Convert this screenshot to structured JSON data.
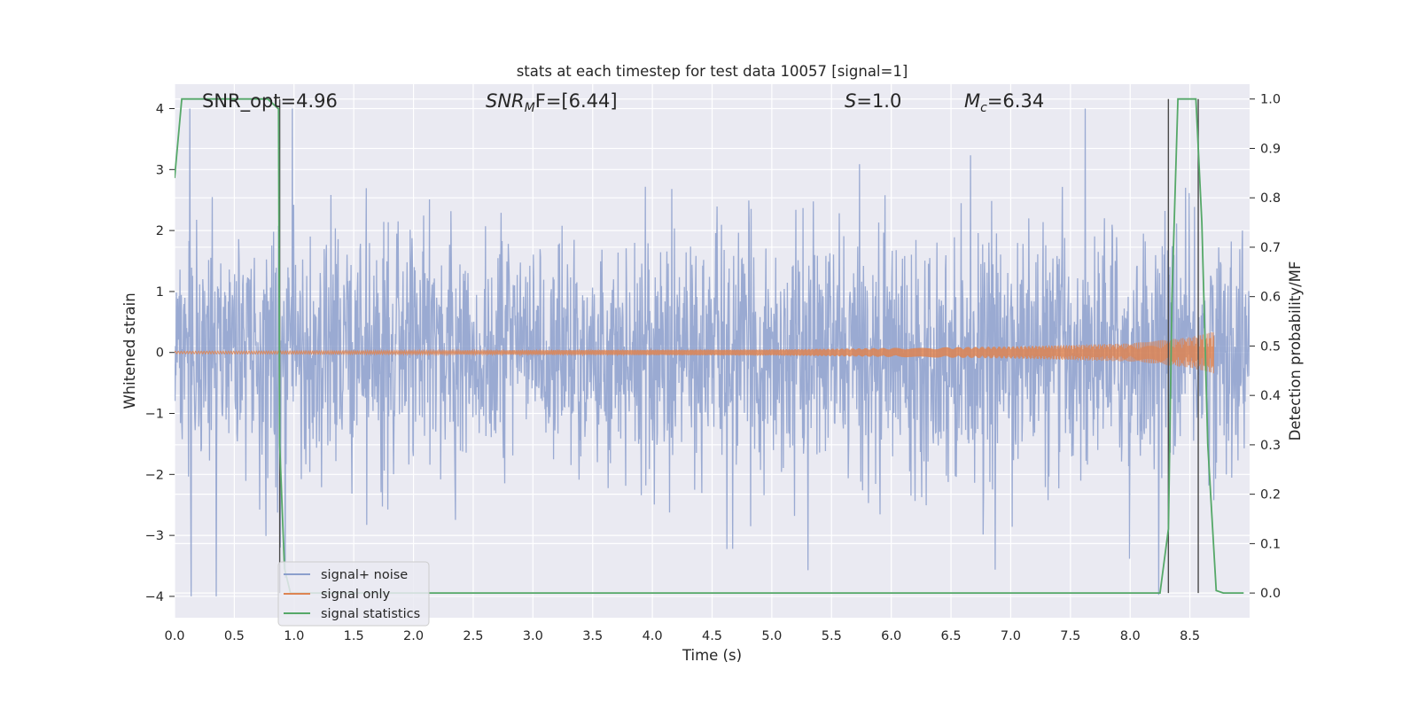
{
  "chart_data": {
    "type": "line",
    "title": "stats at each timestep for test data 10057 [signal=1]",
    "xlabel": "Time (s)",
    "ylabel": "Whitened strain",
    "ylabel_right": "Detection probability/MF",
    "xlim": [
      0.0,
      9.0
    ],
    "ylim": [
      -4.35,
      4.4
    ],
    "ylim_right": [
      -0.05,
      1.03
    ],
    "x_ticks": [
      "0.0",
      "0.5",
      "1.0",
      "1.5",
      "2.0",
      "2.5",
      "3.0",
      "3.5",
      "4.0",
      "4.5",
      "5.0",
      "5.5",
      "6.0",
      "6.5",
      "7.0",
      "7.5",
      "8.0",
      "8.5"
    ],
    "x_tick_values": [
      0.0,
      0.5,
      1.0,
      1.5,
      2.0,
      2.5,
      3.0,
      3.5,
      4.0,
      4.5,
      5.0,
      5.5,
      6.0,
      6.5,
      7.0,
      7.5,
      8.0,
      8.5
    ],
    "y_ticks": [
      "−4",
      "−3",
      "−2",
      "−1",
      "0",
      "1",
      "2",
      "3",
      "4"
    ],
    "y_tick_values": [
      -4,
      -3,
      -2,
      -1,
      0,
      1,
      2,
      3,
      4
    ],
    "y_ticks_right": [
      "0.0",
      "0.1",
      "0.2",
      "0.3",
      "0.4",
      "0.5",
      "0.6",
      "0.7",
      "0.8",
      "0.9",
      "1.0"
    ],
    "y_tick_values_right": [
      0.0,
      0.1,
      0.2,
      0.3,
      0.4,
      0.5,
      0.6,
      0.7,
      0.8,
      0.9,
      1.0
    ],
    "grid": true,
    "legend_placement": "lower-left",
    "colors": {
      "background": "#eaeaf2",
      "grid": "#ffffff",
      "noise": "#8c9fcc",
      "signal": "#dd8452",
      "statistics": "#55a868",
      "vline": "#4a4a4a"
    },
    "annotations": [
      {
        "text_main": "SNR_opt=4.96",
        "text_sub": ""
      },
      {
        "text_main": "SNR",
        "text_sub": "M",
        "text_tail": "F=[6.44]",
        "italic": true
      },
      {
        "text_main": "S",
        "text_tail": "=1.0",
        "italic": true
      },
      {
        "text_main": "M",
        "text_sub": "c",
        "text_tail": "=6.34",
        "italic": true
      }
    ],
    "series": [
      {
        "name": "signal+ noise",
        "axis": "left",
        "kind": "noisy strain, approx. symmetric about 0, envelope ±1.5 to ±4"
      },
      {
        "name": "signal only",
        "axis": "left",
        "kind": "chirp",
        "amplitude": [
          [
            0.0,
            0.02
          ],
          [
            5.0,
            0.05
          ],
          [
            7.0,
            0.1
          ],
          [
            8.0,
            0.15
          ],
          [
            8.5,
            0.25
          ],
          [
            8.7,
            0.35
          ]
        ]
      },
      {
        "name": "signal statistics",
        "axis": "right",
        "x": [
          0.0,
          0.06,
          0.12,
          0.5,
          0.78,
          0.87,
          0.88,
          0.92,
          0.97,
          1.0,
          8.0,
          8.25,
          8.32,
          8.35,
          8.4,
          8.55,
          8.6,
          8.65,
          8.72,
          8.78,
          8.95
        ],
        "y": [
          0.84,
          1.0,
          1.0,
          1.0,
          1.0,
          0.98,
          0.3,
          0.05,
          0.0,
          0.0,
          0.0,
          0.0,
          0.13,
          0.6,
          1.0,
          1.0,
          0.75,
          0.3,
          0.005,
          0.0,
          0.0
        ]
      }
    ],
    "vlines": [
      0.88,
      8.32,
      8.57
    ]
  }
}
